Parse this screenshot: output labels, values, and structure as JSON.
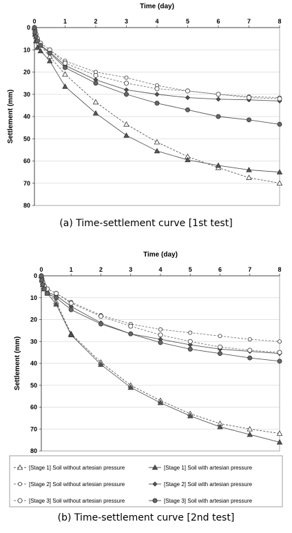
{
  "chart_data": [
    {
      "type": "line",
      "caption": "(a) Time-settlement curve [1st test]",
      "xlabel": "Time (day)",
      "ylabel": "Settlement (mm)",
      "xlim": [
        0,
        8
      ],
      "ylim": [
        0,
        80
      ],
      "y_inverted": true,
      "x_axis_position": "top",
      "xticks": [
        "0",
        "1",
        "2",
        "3",
        "4",
        "5",
        "6",
        "7",
        "8"
      ],
      "yticks": [
        "0",
        "10",
        "20",
        "30",
        "40",
        "50",
        "60",
        "70",
        "80"
      ],
      "grid": "horizontal",
      "series": [
        {
          "key": "s1_without",
          "x": [
            0,
            0.02,
            0.05,
            0.1,
            0.2,
            0.5,
            1,
            2,
            3,
            4,
            5,
            6,
            7,
            8
          ],
          "y": [
            0,
            2,
            4,
            6,
            8,
            13,
            21,
            33.5,
            43.5,
            51.5,
            58,
            63,
            67.5,
            70
          ]
        },
        {
          "key": "s1_with",
          "x": [
            0,
            0.02,
            0.05,
            0.1,
            0.2,
            0.5,
            1,
            2,
            3,
            4,
            5,
            6,
            7,
            8
          ],
          "y": [
            0,
            3,
            6,
            9,
            10.5,
            15,
            26.5,
            38.5,
            48.5,
            55.5,
            59.5,
            62,
            64,
            65
          ]
        },
        {
          "key": "s2_without",
          "x": [
            0,
            0.02,
            0.05,
            0.1,
            0.2,
            0.5,
            1,
            2,
            3,
            4,
            5,
            6,
            7,
            8
          ],
          "y": [
            0,
            1.5,
            3,
            5,
            7,
            10,
            15,
            20,
            22.5,
            26,
            28.5,
            30,
            31,
            31.5
          ]
        },
        {
          "key": "s2_with",
          "x": [
            0,
            0.02,
            0.05,
            0.1,
            0.2,
            0.5,
            1,
            2,
            3,
            4,
            5,
            6,
            7,
            8
          ],
          "y": [
            0,
            2,
            4,
            6,
            8,
            11,
            17,
            23.5,
            28,
            30,
            31.5,
            32.2,
            32.5,
            33
          ]
        },
        {
          "key": "s3_without",
          "x": [
            0,
            0.02,
            0.05,
            0.1,
            0.2,
            0.5,
            1,
            2,
            3,
            4,
            5,
            6,
            7,
            8
          ],
          "y": [
            0,
            1.5,
            3,
            5,
            7,
            10,
            16,
            21.5,
            25,
            27.5,
            28.5,
            30,
            31.5,
            32
          ]
        },
        {
          "key": "s3_with",
          "x": [
            0,
            0.02,
            0.05,
            0.1,
            0.2,
            0.5,
            1,
            2,
            3,
            4,
            5,
            6,
            7,
            8
          ],
          "y": [
            0,
            2,
            4,
            6,
            8,
            11.5,
            18,
            25,
            30,
            34,
            37,
            40,
            41.5,
            43.5
          ]
        }
      ]
    },
    {
      "type": "line",
      "caption": "(b) Time-settlement curve [2nd test]",
      "xlabel": "Time (day)",
      "ylabel": "Settlement (mm)",
      "xlim": [
        0,
        8
      ],
      "ylim": [
        0,
        80
      ],
      "y_inverted": true,
      "x_axis_position": "top",
      "xticks": [
        "0",
        "1",
        "2",
        "3",
        "4",
        "5",
        "6",
        "7",
        "8"
      ],
      "yticks": [
        "0",
        "10",
        "20",
        "30",
        "40",
        "50",
        "60",
        "70",
        "80"
      ],
      "grid": "horizontal",
      "series": [
        {
          "key": "s1_without",
          "x": [
            0,
            0.02,
            0.05,
            0.1,
            0.2,
            0.5,
            1,
            2,
            3,
            4,
            5,
            6,
            7,
            8
          ],
          "y": [
            0,
            1.5,
            3,
            5,
            7,
            12,
            26.5,
            39.5,
            50,
            57,
            63,
            67.5,
            70,
            72
          ]
        },
        {
          "key": "s1_with",
          "x": [
            0,
            0.02,
            0.05,
            0.1,
            0.2,
            0.5,
            1,
            2,
            3,
            4,
            5,
            6,
            7,
            8
          ],
          "y": [
            0,
            2,
            4,
            6,
            8,
            13,
            27,
            40.5,
            51,
            58,
            64,
            69,
            72.5,
            76
          ]
        },
        {
          "key": "s2_without",
          "x": [
            0,
            0.02,
            0.05,
            0.1,
            0.2,
            0.5,
            1,
            2,
            3,
            4,
            5,
            6,
            7,
            8
          ],
          "y": [
            0,
            1.5,
            3,
            4.5,
            6,
            8,
            12,
            18,
            22,
            24.5,
            26,
            27.5,
            29,
            30
          ]
        },
        {
          "key": "s2_with",
          "x": [
            0,
            0.02,
            0.05,
            0.1,
            0.2,
            0.5,
            1,
            2,
            3,
            4,
            5,
            6,
            7,
            8
          ],
          "y": [
            0,
            2,
            4,
            6,
            7.5,
            9,
            14,
            21.5,
            26.5,
            29,
            31.5,
            33.5,
            34.5,
            35.5
          ]
        },
        {
          "key": "s3_without",
          "x": [
            0,
            0.02,
            0.05,
            0.1,
            0.2,
            0.5,
            1,
            2,
            3,
            4,
            5,
            6,
            7,
            8
          ],
          "y": [
            0,
            1.5,
            3,
            4.5,
            6,
            8,
            12.5,
            18.5,
            23,
            27,
            30,
            32.5,
            34,
            35
          ]
        },
        {
          "key": "s3_with",
          "x": [
            0,
            0.02,
            0.05,
            0.1,
            0.2,
            0.5,
            1,
            2,
            3,
            4,
            5,
            6,
            7,
            8
          ],
          "y": [
            0,
            2,
            4,
            6,
            8,
            10,
            15.5,
            22,
            26.5,
            30.5,
            33.5,
            35.5,
            37.5,
            39
          ]
        }
      ]
    }
  ],
  "series_styles": {
    "s1_without": {
      "marker": "triangle",
      "fill": "#ffffff",
      "dash": true,
      "stroke": "#555555"
    },
    "s1_with": {
      "marker": "triangle",
      "fill": "#555555",
      "dash": false,
      "stroke": "#555555"
    },
    "s2_without": {
      "marker": "circle-small",
      "fill": "#ffffff",
      "dash": true,
      "stroke": "#777777"
    },
    "s2_with": {
      "marker": "diamond",
      "fill": "#555555",
      "dash": false,
      "stroke": "#555555"
    },
    "s3_without": {
      "marker": "circle",
      "fill": "#ffffff",
      "dash": true,
      "stroke": "#777777"
    },
    "s3_with": {
      "marker": "circle",
      "fill": "#666666",
      "dash": false,
      "stroke": "#555555"
    }
  },
  "legend": {
    "placement": "bottom",
    "entries": [
      {
        "key": "s1_without",
        "label": "[Stage 1] Soil without artesian pressure"
      },
      {
        "key": "s1_with",
        "label": "[Stage 1] Soil with artesian pressure"
      },
      {
        "key": "s2_without",
        "label": "[Stage 2] Soil without artesian pressure"
      },
      {
        "key": "s2_with",
        "label": "[Stage 2] Soil with artesian pressure"
      },
      {
        "key": "s3_without",
        "label": "[Stage 3] Soil without artesian pressure"
      },
      {
        "key": "s3_with",
        "label": "[Stage 3] Soil with artesian pressure"
      }
    ]
  }
}
